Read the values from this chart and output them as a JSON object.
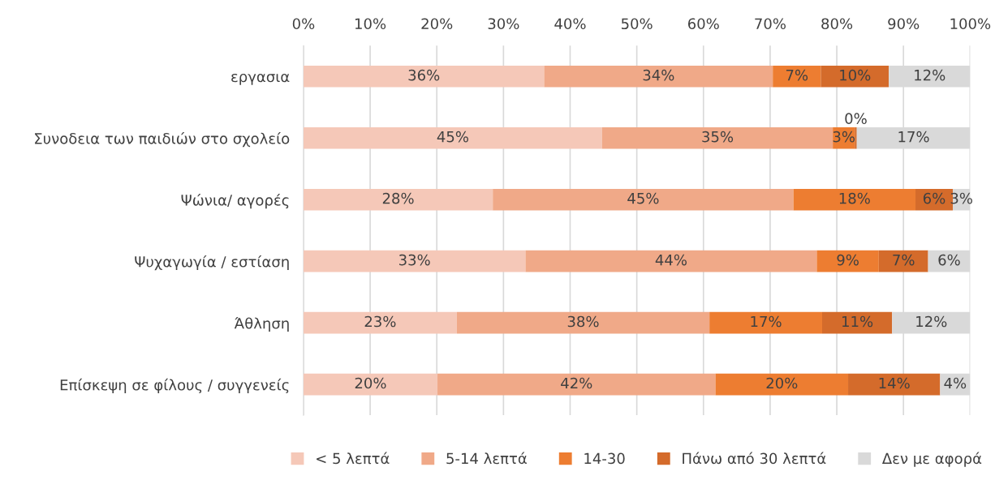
{
  "chart_data": {
    "type": "bar",
    "orientation": "horizontal",
    "stacked": true,
    "categories": [
      "εργασια",
      "Συνοδεια των παιδιών στο σχολείο",
      "Ψώνια/ αγορές",
      "Ψυχαγωγία / εστίαση",
      "Άθληση",
      "Επίσκεψη σε φίλους / συγγενείς"
    ],
    "series": [
      {
        "name": "< 5 λεπτά",
        "color": "#f5c8b8",
        "values": [
          36.1,
          44.8,
          28.4,
          33.3,
          23.0,
          20.1
        ],
        "value_labels": [
          "36%",
          "45%",
          "28%",
          "33%",
          "23%",
          "20%"
        ]
      },
      {
        "name": "5-14 λεπτά",
        "color": "#f0a988",
        "values": [
          34.3,
          34.6,
          45.1,
          43.7,
          37.9,
          41.7
        ],
        "value_labels": [
          "34%",
          "35%",
          "45%",
          "44%",
          "38%",
          "42%"
        ]
      },
      {
        "name": "14-30",
        "color": "#ed7d31",
        "values": [
          7.2,
          3.3,
          18.3,
          9.3,
          16.9,
          19.9
        ],
        "value_labels": [
          "7%",
          "3%",
          "18%",
          "9%",
          "17%",
          "20%"
        ]
      },
      {
        "name": "Πάνω από 30 λεπτά",
        "color": "#d46b2b",
        "values": [
          10.2,
          0.3,
          5.6,
          7.4,
          10.5,
          13.8
        ],
        "value_labels": [
          "10%",
          "0%",
          "6%",
          "7%",
          "11%",
          "14%"
        ]
      },
      {
        "name": "Δεν με αφορά",
        "color": "#d9d9d9",
        "values": [
          12.2,
          17.0,
          2.6,
          6.3,
          11.7,
          4.5
        ],
        "value_labels": [
          "12%",
          "17%",
          "3%",
          "6%",
          "12%",
          "4%"
        ]
      }
    ],
    "xlim": [
      0,
      100
    ],
    "xticks": [
      {
        "value": 0,
        "label": "0%"
      },
      {
        "value": 10,
        "label": "10%"
      },
      {
        "value": 20,
        "label": "20%"
      },
      {
        "value": 30,
        "label": "30%"
      },
      {
        "value": 40,
        "label": "40%"
      },
      {
        "value": 50,
        "label": "50%"
      },
      {
        "value": 60,
        "label": "60%"
      },
      {
        "value": 70,
        "label": "70%"
      },
      {
        "value": 80,
        "label": "80%"
      },
      {
        "value": 90,
        "label": "90%"
      },
      {
        "value": 100,
        "label": "100%"
      }
    ],
    "grid": "x",
    "legend": "bottom"
  }
}
